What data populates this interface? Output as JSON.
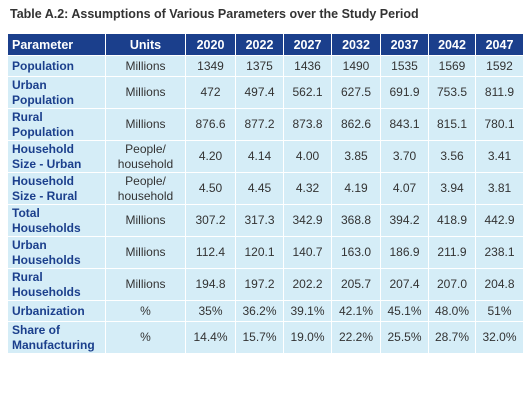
{
  "title": "Table A.2:  Assumptions of Various Parameters over the Study Period",
  "columns": [
    "Parameter",
    "Units",
    "2020",
    "2022",
    "2027",
    "2032",
    "2037",
    "2042",
    "2047"
  ],
  "rows": [
    {
      "parameter": "Population",
      "units": "Millions",
      "values": [
        "1349",
        "1375",
        "1436",
        "1490",
        "1535",
        "1569",
        "1592"
      ]
    },
    {
      "parameter": "Urban Population",
      "units": "Millions",
      "values": [
        "472",
        "497.4",
        "562.1",
        "627.5",
        "691.9",
        "753.5",
        "811.9"
      ]
    },
    {
      "parameter": "Rural Population",
      "units": "Millions",
      "values": [
        "876.6",
        "877.2",
        "873.8",
        "862.6",
        "843.1",
        "815.1",
        "780.1"
      ]
    },
    {
      "parameter": "Household Size - Urban",
      "units": "People/ household",
      "values": [
        "4.20",
        "4.14",
        "4.00",
        "3.85",
        "3.70",
        "3.56",
        "3.41"
      ]
    },
    {
      "parameter": "Household Size - Rural",
      "units": "People/ household",
      "values": [
        "4.50",
        "4.45",
        "4.32",
        "4.19",
        "4.07",
        "3.94",
        "3.81"
      ]
    },
    {
      "parameter": "Total Households",
      "units": "Millions",
      "values": [
        "307.2",
        "317.3",
        "342.9",
        "368.8",
        "394.2",
        "418.9",
        "442.9"
      ]
    },
    {
      "parameter": "Urban Households",
      "units": "Millions",
      "values": [
        "112.4",
        "120.1",
        "140.7",
        "163.0",
        "186.9",
        "211.9",
        "238.1"
      ]
    },
    {
      "parameter": "Rural Households",
      "units": "Millions",
      "values": [
        "194.8",
        "197.2",
        "202.2",
        "205.7",
        "207.4",
        "207.0",
        "204.8"
      ]
    },
    {
      "parameter": "Urbanization",
      "units": "%",
      "values": [
        "35%",
        "36.2%",
        "39.1%",
        "42.1%",
        "45.1%",
        "48.0%",
        "51%"
      ]
    },
    {
      "parameter": "Share of Manufacturing",
      "units": "%",
      "values": [
        "14.4%",
        "15.7%",
        "19.0%",
        "22.2%",
        "25.5%",
        "28.7%",
        "32.0%"
      ]
    }
  ],
  "colors": {
    "header_bg": "#1b3f8c",
    "cell_bg": "#d5edf7",
    "param_text": "#1b3f8c"
  }
}
